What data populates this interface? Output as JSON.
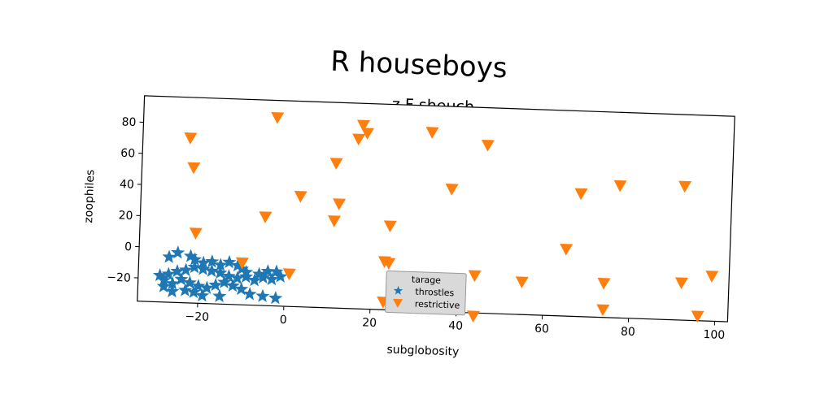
{
  "chart_data": {
    "type": "scatter",
    "suptitle": "R houseboys",
    "title": "z F sheuch",
    "xlabel": "subglobosity",
    "ylabel": "zoophiles",
    "xlim": [
      -34,
      103
    ],
    "ylim": [
      -35,
      97
    ],
    "xticks": [
      -20,
      0,
      20,
      40,
      60,
      80,
      100
    ],
    "xtick_labels": [
      "−20",
      "0",
      "20",
      "40",
      "60",
      "80",
      "100"
    ],
    "yticks": [
      -20,
      0,
      20,
      40,
      60,
      80
    ],
    "ytick_labels": [
      "−20",
      "0",
      "20",
      "40",
      "60",
      "80"
    ],
    "grid": false,
    "legend": {
      "title": "tarage",
      "placement": "lower center"
    },
    "series": [
      {
        "name": "throstles",
        "marker": "star",
        "color": "#1f77b4",
        "points": [
          [
            -27,
            -6
          ],
          [
            -25,
            -3
          ],
          [
            -22,
            -5
          ],
          [
            -21,
            -7
          ],
          [
            -19,
            -9
          ],
          [
            -17,
            -8
          ],
          [
            -15,
            -10
          ],
          [
            -13,
            -8
          ],
          [
            -11,
            -10
          ],
          [
            -10,
            -12
          ],
          [
            -9,
            -14
          ],
          [
            -6,
            -15
          ],
          [
            -4,
            -13
          ],
          [
            -2,
            -13
          ],
          [
            -1,
            -16
          ],
          [
            -3,
            -18
          ],
          [
            -5,
            -17
          ],
          [
            -7,
            -19
          ],
          [
            -9,
            -17
          ],
          [
            -11,
            -18
          ],
          [
            -13,
            -17
          ],
          [
            -15,
            -15
          ],
          [
            -17,
            -14
          ],
          [
            -19,
            -13
          ],
          [
            -21,
            -12
          ],
          [
            -23,
            -14
          ],
          [
            -25,
            -15
          ],
          [
            -27,
            -17
          ],
          [
            -29,
            -18
          ],
          [
            -28,
            -21
          ],
          [
            -26,
            -23
          ],
          [
            -24,
            -20
          ],
          [
            -22,
            -22
          ],
          [
            -20,
            -24
          ],
          [
            -18,
            -25
          ],
          [
            -16,
            -23
          ],
          [
            -14,
            -21
          ],
          [
            -12,
            -23
          ],
          [
            -10,
            -25
          ],
          [
            -28,
            -25
          ],
          [
            -26,
            -28
          ],
          [
            -23,
            -27
          ],
          [
            -21,
            -28
          ],
          [
            -19,
            -30
          ],
          [
            -15,
            -30
          ],
          [
            -8,
            -28
          ],
          [
            -5,
            -29
          ],
          [
            -2,
            -30
          ]
        ]
      },
      {
        "name": "restrictive",
        "marker": "triangle_down",
        "color": "#ff7f0e",
        "points": [
          [
            -3,
            86
          ],
          [
            17,
            83
          ],
          [
            18,
            78
          ],
          [
            16,
            74
          ],
          [
            33,
            80
          ],
          [
            46,
            73
          ],
          [
            -23,
            71
          ],
          [
            -22,
            52
          ],
          [
            11,
            58
          ],
          [
            92,
            51
          ],
          [
            77,
            50
          ],
          [
            68,
            44
          ],
          [
            38,
            44
          ],
          [
            3,
            36
          ],
          [
            12,
            32
          ],
          [
            -5,
            22
          ],
          [
            11,
            21
          ],
          [
            24,
            19
          ],
          [
            -21,
            10
          ],
          [
            65,
            8
          ],
          [
            23,
            -4
          ],
          [
            24,
            -5
          ],
          [
            -10,
            -8
          ],
          [
            1,
            -14
          ],
          [
            44,
            -11
          ],
          [
            55,
            -14
          ],
          [
            74,
            -13
          ],
          [
            92,
            -11
          ],
          [
            99,
            -6
          ],
          [
            23,
            -30
          ],
          [
            44,
            -37
          ],
          [
            74,
            -30
          ],
          [
            96,
            -32
          ]
        ]
      }
    ]
  }
}
